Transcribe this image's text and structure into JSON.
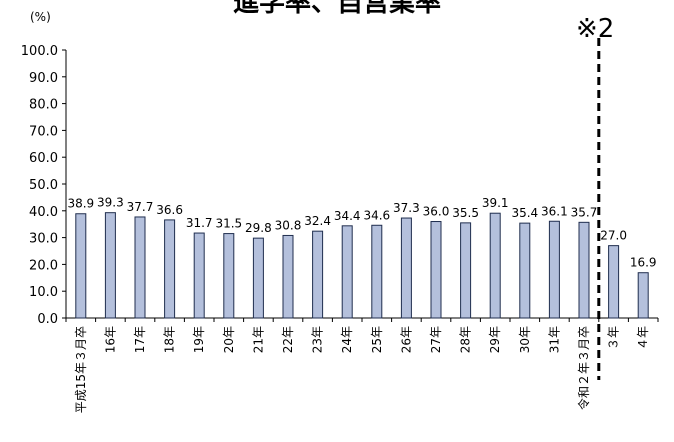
{
  "chart_data": {
    "type": "bar",
    "title": "進学率、自営業率",
    "ylabel": "(%)",
    "ylim": [
      0,
      100
    ],
    "yticks": [
      "0.0",
      "10.0",
      "20.0",
      "30.0",
      "40.0",
      "50.0",
      "60.0",
      "70.0",
      "80.0",
      "90.0",
      "100.0"
    ],
    "grid": false,
    "bar_color": "#b4c0dc",
    "bar_edge_color": "#1f2d4e",
    "categories": [
      "平成15年３月卒",
      "16年",
      "17年",
      "18年",
      "19年",
      "20年",
      "21年",
      "22年",
      "23年",
      "24年",
      "25年",
      "26年",
      "27年",
      "28年",
      "29年",
      "30年",
      "31年",
      "令和２年３月卒",
      "３年",
      "４年"
    ],
    "values": [
      38.9,
      39.3,
      37.7,
      36.6,
      31.7,
      31.5,
      29.8,
      30.8,
      32.4,
      34.4,
      34.6,
      37.3,
      36.0,
      35.5,
      39.1,
      35.4,
      36.1,
      35.7,
      27.0,
      16.9
    ],
    "data_labels": [
      "38.9",
      "39.3",
      "37.7",
      "36.6",
      "31.7",
      "31.5",
      "29.8",
      "30.8",
      "32.4",
      "34.4",
      "34.6",
      "37.3",
      "36.0",
      "35.5",
      "39.1",
      "35.4",
      "36.1",
      "35.7",
      "27.0",
      "16.9"
    ],
    "annotation": "※2"
  }
}
